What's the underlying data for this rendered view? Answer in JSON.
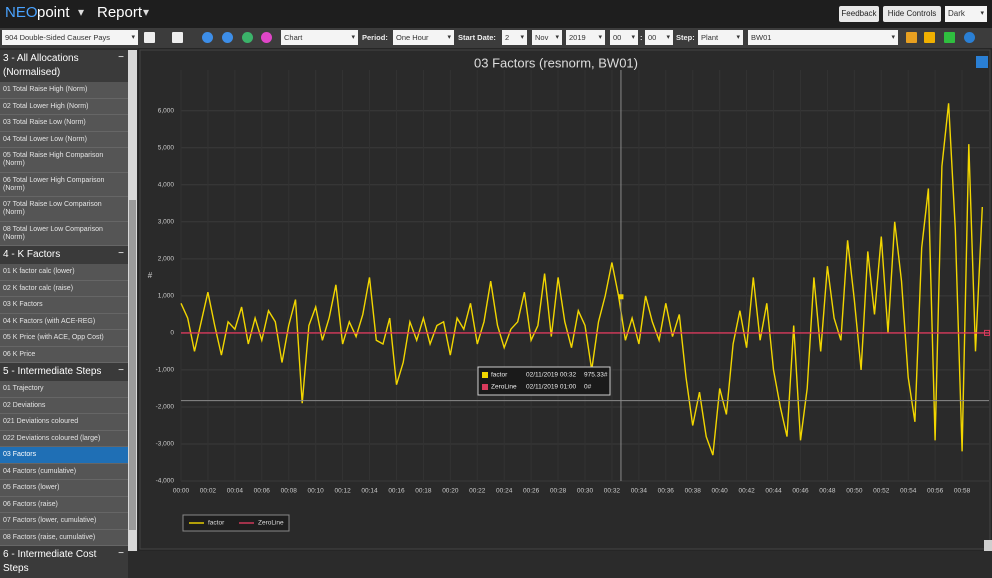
{
  "header": {
    "brand_neo": "NEO",
    "brand_point": "point",
    "menu": "Report",
    "buttons": [
      "Feedback",
      "Hide Controls"
    ],
    "theme": "Dark"
  },
  "toolbar": {
    "report": "904 Double-Sided Causer Pays",
    "view": "Chart",
    "period_label": "Period:",
    "period": "One Hour",
    "start_label": "Start Date:",
    "day": "2",
    "month": "Nov",
    "year": "2019",
    "hour": "00",
    "sep": ":",
    "minute": "00",
    "step_label": "Step:",
    "step": "Plant",
    "unit": "BW01"
  },
  "sidebar": [
    {
      "title": "3 - All Allocations (Normalised)",
      "items": [
        "01 Total Raise High (Norm)",
        "02 Total Lower High (Norm)",
        "03 Total Raise Low (Norm)",
        "04 Total Lower Low (Norm)",
        "05 Total Raise High Comparison (Norm)",
        "06 Total Lower High Comparison (Norm)",
        "07 Total Raise Low Comparison (Norm)",
        "08 Total Lower Low Comparison (Norm)"
      ]
    },
    {
      "title": "4 - K Factors",
      "items": [
        "01 K factor calc (lower)",
        "02 K factor calc (raise)",
        "03 K Factors",
        "04 K Factors (with ACE-REG)",
        "05 K Price (with ACE, Opp Cost)",
        "06 K Price"
      ]
    },
    {
      "title": "5 - Intermediate Steps",
      "items": [
        "01 Trajectory",
        "02 Deviations",
        "021 Deviations coloured",
        "022 Deviations coloured (large)",
        "03 Factors",
        "04 Factors (cumulative)",
        "05 Factors (lower)",
        "06 Factors (raise)",
        "07 Factors (lower, cumulative)",
        "08 Factors (raise, cumulative)"
      ]
    },
    {
      "title": "6 - Intermediate Cost Steps",
      "items": []
    }
  ],
  "selected_item": {
    "section": 2,
    "item": 4
  },
  "chart_data": {
    "type": "line",
    "title": "03 Factors (resnorm, BW01)",
    "ylabel": "#",
    "grid": true,
    "legend": "bottom-left",
    "xlim": [
      0,
      60
    ],
    "ylim": [
      -4000,
      7100
    ],
    "xticks": [
      {
        "value": 0,
        "label": "00:00"
      },
      {
        "value": 2,
        "label": "00:02"
      },
      {
        "value": 4,
        "label": "00:04"
      },
      {
        "value": 6,
        "label": "00:06"
      },
      {
        "value": 8,
        "label": "00:08"
      },
      {
        "value": 10,
        "label": "00:10"
      },
      {
        "value": 12,
        "label": "00:12"
      },
      {
        "value": 14,
        "label": "00:14"
      },
      {
        "value": 16,
        "label": "00:16"
      },
      {
        "value": 18,
        "label": "00:18"
      },
      {
        "value": 20,
        "label": "00:20"
      },
      {
        "value": 22,
        "label": "00:22"
      },
      {
        "value": 24,
        "label": "00:24"
      },
      {
        "value": 26,
        "label": "00:26"
      },
      {
        "value": 28,
        "label": "00:28"
      },
      {
        "value": 30,
        "label": "00:30"
      },
      {
        "value": 32,
        "label": "00:32"
      },
      {
        "value": 34,
        "label": "00:34"
      },
      {
        "value": 36,
        "label": "00:36"
      },
      {
        "value": 38,
        "label": "00:38"
      },
      {
        "value": 40,
        "label": "00:40"
      },
      {
        "value": 42,
        "label": "00:42"
      },
      {
        "value": 44,
        "label": "00:44"
      },
      {
        "value": 46,
        "label": "00:46"
      },
      {
        "value": 48,
        "label": "00:48"
      },
      {
        "value": 50,
        "label": "00:50"
      },
      {
        "value": 52,
        "label": "00:52"
      },
      {
        "value": 54,
        "label": "00:54"
      },
      {
        "value": 56,
        "label": "00:56"
      },
      {
        "value": 58,
        "label": "00:58"
      }
    ],
    "yticks": [
      {
        "value": -4000,
        "label": "-4,000"
      },
      {
        "value": -3000,
        "label": "-3,000"
      },
      {
        "value": -2000,
        "label": "-2,000"
      },
      {
        "value": -1000,
        "label": "-1,000"
      },
      0,
      {
        "value": 1000,
        "label": "1,000"
      },
      {
        "value": 2000,
        "label": "2,000"
      },
      {
        "value": 3000,
        "label": "3,000"
      },
      {
        "value": 4000,
        "label": "4,000"
      },
      {
        "value": 5000,
        "label": "5,000"
      },
      {
        "value": 6000,
        "label": "6,000"
      }
    ],
    "series": [
      {
        "name": "factor",
        "color": "#f2d600",
        "x": [
          0,
          0.5,
          1,
          1.5,
          2,
          2.5,
          3,
          3.5,
          4,
          4.5,
          5,
          5.5,
          6,
          6.5,
          7,
          7.5,
          8,
          8.5,
          9,
          9.5,
          10,
          10.5,
          11,
          11.5,
          12,
          12.5,
          13,
          13.5,
          14,
          14.5,
          15,
          15.5,
          16,
          16.5,
          17,
          17.5,
          18,
          18.5,
          19,
          19.5,
          20,
          20.5,
          21,
          21.5,
          22,
          22.5,
          23,
          23.5,
          24,
          24.5,
          25,
          25.5,
          26,
          26.5,
          27,
          27.5,
          28,
          28.5,
          29,
          29.5,
          30,
          30.5,
          31,
          31.5,
          32,
          32.5,
          33,
          33.5,
          34,
          34.5,
          35,
          35.5,
          36,
          36.5,
          37,
          37.5,
          38,
          38.5,
          39,
          39.5,
          40,
          40.5,
          41,
          41.5,
          42,
          42.5,
          43,
          43.5,
          44,
          44.5,
          45,
          45.5,
          46,
          46.5,
          47,
          47.5,
          48,
          48.5,
          49,
          49.5,
          50,
          50.5,
          51,
          51.5,
          52,
          52.5,
          53,
          53.5,
          54,
          54.5,
          55,
          55.5,
          56,
          56.5,
          57,
          57.5,
          58,
          58.5,
          59,
          59.5
        ],
        "values": [
          800,
          400,
          -500,
          300,
          1100,
          200,
          -600,
          300,
          100,
          700,
          -300,
          400,
          -200,
          600,
          300,
          -800,
          200,
          900,
          -1900,
          200,
          700,
          -200,
          400,
          1300,
          -300,
          300,
          -100,
          500,
          1500,
          -200,
          -300,
          400,
          -1400,
          -800,
          300,
          -200,
          400,
          -300,
          200,
          300,
          -600,
          400,
          100,
          800,
          -300,
          300,
          1400,
          200,
          -400,
          100,
          300,
          1100,
          -200,
          200,
          1600,
          -100,
          1500,
          300,
          -400,
          600,
          200,
          -1000,
          300,
          1000,
          1900,
          975.33,
          -200,
          400,
          -300,
          1000,
          300,
          -200,
          800,
          -100,
          500,
          -1200,
          -2500,
          -1600,
          -2800,
          -3300,
          -1500,
          -2200,
          -300,
          600,
          -400,
          1500,
          -200,
          800,
          -1000,
          -2000,
          -2800,
          200,
          -2900,
          -1500,
          1500,
          -500,
          1800,
          400,
          -200,
          2500,
          900,
          -1000,
          2200,
          500,
          2600,
          0,
          3000,
          1400,
          -1200,
          -2400,
          2300,
          3900,
          -2900,
          4500,
          6200,
          2800,
          -3200,
          5100,
          -500,
          3400
        ]
      },
      {
        "name": "ZeroLine",
        "color": "#d93a5c",
        "x": [
          0,
          60
        ],
        "values": [
          0,
          0
        ]
      }
    ],
    "crosshair": {
      "x": 32.67,
      "y": -1830
    },
    "tooltip": [
      {
        "name": "factor",
        "time": "02/11/2019 00:32",
        "value": "975.33#"
      },
      {
        "name": "ZeroLine",
        "time": "02/11/2019 01:00",
        "value": "0#"
      }
    ]
  }
}
